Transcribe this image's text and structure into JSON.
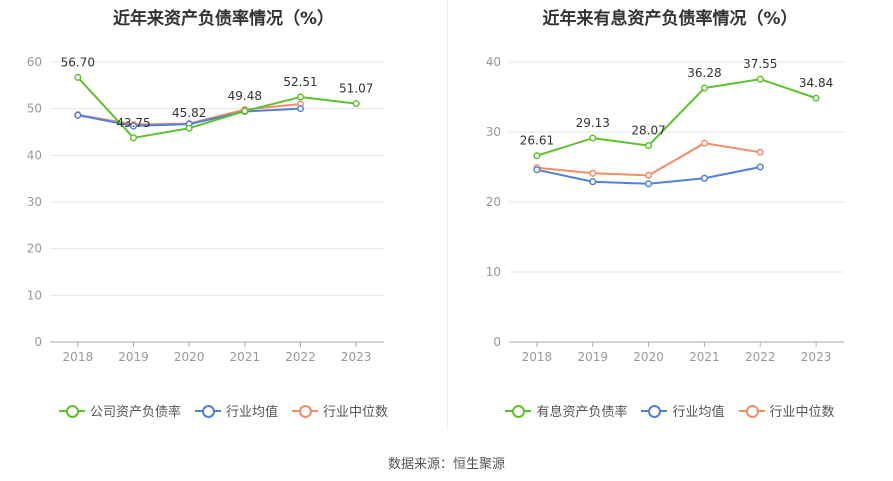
{
  "source": "数据来源：恒生聚源",
  "colors": {
    "company": "#5cc22b",
    "avg": "#4f7fe0",
    "median": "#f48c66",
    "axis": "#999999",
    "grid": "#e6e6e6"
  },
  "chart_data": [
    {
      "type": "line",
      "title": "近年来资产负债率情况（%）",
      "categories": [
        "2018",
        "2019",
        "2020",
        "2021",
        "2022",
        "2023"
      ],
      "ylim": [
        0,
        60
      ],
      "yticks": [
        "0",
        "10",
        "20",
        "30",
        "40",
        "50",
        "60"
      ],
      "grid": true,
      "legend_position": "bottom",
      "series": [
        {
          "name": "公司资产负债率",
          "color": "#5cc22b",
          "values": [
            56.7,
            43.75,
            45.82,
            49.48,
            52.51,
            51.07
          ],
          "labels": [
            "56.70",
            "43.75",
            "45.82",
            "49.48",
            "52.51",
            "51.07"
          ]
        },
        {
          "name": "行业均值",
          "color": "#4f7fe0",
          "values": [
            48.6,
            46.3,
            46.7,
            49.4,
            50.0,
            null
          ]
        },
        {
          "name": "行业中位数",
          "color": "#f48c66",
          "values": [
            48.7,
            46.6,
            46.8,
            49.8,
            51.0,
            null
          ]
        }
      ]
    },
    {
      "type": "line",
      "title": "近年来有息资产负债率情况（%）",
      "categories": [
        "2018",
        "2019",
        "2020",
        "2021",
        "2022",
        "2023"
      ],
      "ylim": [
        0,
        40
      ],
      "yticks": [
        "0",
        "10",
        "20",
        "30",
        "40"
      ],
      "grid": true,
      "legend_position": "bottom",
      "series": [
        {
          "name": "有息资产负债率",
          "color": "#5cc22b",
          "values": [
            26.61,
            29.13,
            28.07,
            36.28,
            37.55,
            34.84
          ],
          "labels": [
            "26.61",
            "29.13",
            "28.07",
            "36.28",
            "37.55",
            "34.84"
          ]
        },
        {
          "name": "行业均值",
          "color": "#4f7fe0",
          "values": [
            24.6,
            22.9,
            22.6,
            23.4,
            25.0,
            null
          ]
        },
        {
          "name": "行业中位数",
          "color": "#f48c66",
          "values": [
            24.9,
            24.1,
            23.8,
            28.4,
            27.1,
            null
          ]
        }
      ]
    }
  ]
}
